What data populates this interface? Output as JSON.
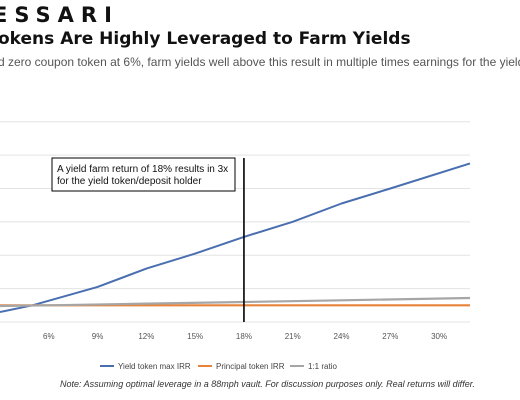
{
  "header": {
    "brand": "ESSARI",
    "title": "okens Are Highly Leveraged to Farm Yields",
    "subtitle": "d zero coupon token at 6%, farm yields well above this result in multiple times earnings for the yield"
  },
  "note": "Note: Assuming optimal leverage in a 88mph vault. For discussion purposes only. Real returns will differ.",
  "chart_data": {
    "type": "line",
    "title": "",
    "xlabel": "",
    "ylabel": "",
    "x_ticks": [
      "6%",
      "9%",
      "12%",
      "15%",
      "18%",
      "21%",
      "24%",
      "27%",
      "30%"
    ],
    "xlim": [
      3.0,
      31.9
    ],
    "ylim": [
      -0.5,
      6.0
    ],
    "grid": "horizontal",
    "legend_position": "bottom",
    "series": [
      {
        "name": "Yield token max IRR",
        "color": "#4a6fb0",
        "x": [
          3.0,
          5.0,
          9.0,
          12.0,
          15.0,
          18.0,
          21.0,
          24.0,
          27.0,
          31.9
        ],
        "y": [
          -0.2,
          0.0,
          0.55,
          1.1,
          1.55,
          2.05,
          2.5,
          3.05,
          3.5,
          4.25
        ]
      },
      {
        "name": "Principal token IRR",
        "color": "#e8833a",
        "x": [
          3.0,
          31.9
        ],
        "y": [
          0.0,
          0.0
        ]
      },
      {
        "name": "1:1 ratio",
        "color": "#a6a6a6",
        "x": [
          3.0,
          6.0,
          12.0,
          18.0,
          24.0,
          31.9
        ],
        "y": [
          -0.02,
          0.0,
          0.05,
          0.1,
          0.15,
          0.22
        ]
      }
    ],
    "annotation": {
      "text_lines": [
        "A yield farm return of 18% results in 3x",
        "for the yield token/deposit holder"
      ],
      "x": 18
    }
  }
}
